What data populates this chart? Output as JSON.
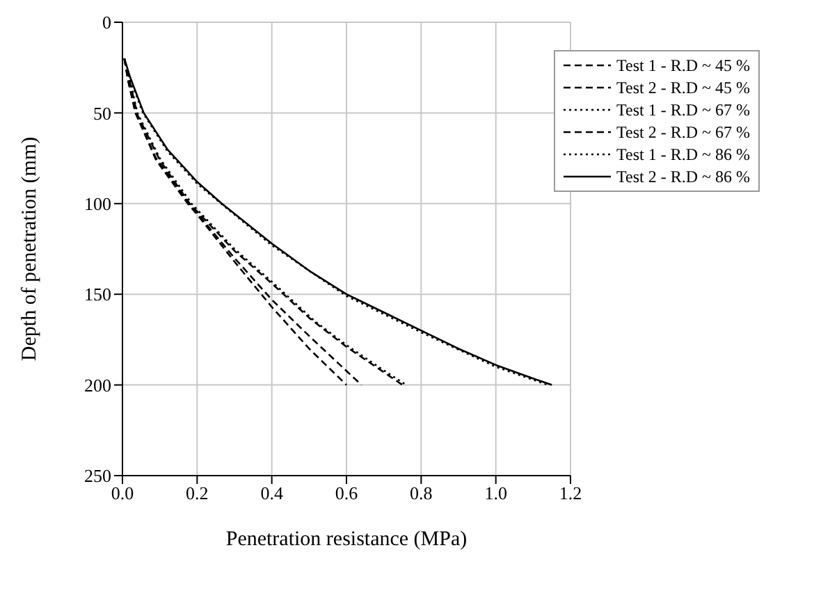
{
  "chart_data": {
    "type": "line",
    "xlabel": "Penetration  resistance (MPa)",
    "ylabel": "Depth of penetration (mm)",
    "xlim": [
      0,
      1.2
    ],
    "xticks": [
      {
        "value": 0,
        "label": "0.0"
      },
      {
        "value": 0.2,
        "label": "0.2"
      },
      {
        "value": 0.4,
        "label": "0.4"
      },
      {
        "value": 0.6,
        "label": "0.6"
      },
      {
        "value": 0.8,
        "label": "0.8"
      },
      {
        "value": 1,
        "label": "1.0"
      },
      {
        "value": 1.2,
        "label": "1.2"
      }
    ],
    "ylim": [
      250,
      0
    ],
    "yticks": [
      0,
      50,
      100,
      150,
      200,
      250
    ],
    "grid": true,
    "legend": "top right",
    "marker": "none",
    "series": [
      {
        "name": "Test 1 - R.D ~ 45 %",
        "color": "#000000",
        "line_style": "dashed",
        "x": [
          0.005,
          0.015,
          0.035,
          0.09,
          0.175,
          0.2,
          0.3,
          0.4,
          0.5,
          0.6
        ],
        "values": [
          20,
          32,
          50,
          76,
          100,
          106,
          132,
          157,
          180,
          200
        ]
      },
      {
        "name": "Test 2 - R.D ~ 45 %",
        "color": "#000000",
        "line_style": "dashed",
        "x": [
          0.005,
          0.015,
          0.035,
          0.09,
          0.175,
          0.3,
          0.4,
          0.5,
          0.64
        ],
        "values": [
          20,
          32,
          50,
          75,
          99,
          130,
          153,
          173,
          200
        ]
      },
      {
        "name": "Test 1 - R.D ~ 67 %",
        "color": "#000000",
        "line_style": "dotted",
        "x": [
          0.005,
          0.02,
          0.04,
          0.1,
          0.185,
          0.3,
          0.4,
          0.516,
          0.6,
          0.7,
          0.76
        ],
        "values": [
          20,
          32,
          50,
          75,
          100,
          125,
          143,
          165,
          178,
          192,
          200
        ]
      },
      {
        "name": "Test 2 - R.D ~ 67 %",
        "color": "#000000",
        "line_style": "dashed",
        "x": [
          0.005,
          0.02,
          0.04,
          0.1,
          0.18,
          0.3,
          0.4,
          0.5,
          0.6,
          0.75
        ],
        "values": [
          20,
          33,
          51,
          76,
          100,
          126,
          144,
          163,
          179,
          200
        ]
      },
      {
        "name": "Test 1 - R.D ~ 86 %",
        "color": "#000000",
        "line_style": "dotted",
        "x": [
          0.005,
          0.02,
          0.055,
          0.12,
          0.2,
          0.27,
          0.4,
          0.6,
          0.8,
          1.0,
          1.14
        ],
        "values": [
          20,
          31,
          50,
          71,
          89,
          101,
          123,
          151,
          171,
          190,
          200
        ]
      },
      {
        "name": "Test 2 - R.D ~ 86 %",
        "color": "#000000",
        "line_style": "solid",
        "x": [
          0.005,
          0.02,
          0.057,
          0.12,
          0.2,
          0.266,
          0.4,
          0.5,
          0.6,
          0.7,
          0.8,
          0.9,
          1.0,
          1.08,
          1.15
        ],
        "values": [
          20,
          30,
          50,
          70,
          88,
          100,
          122,
          137,
          150,
          160,
          170,
          180,
          189,
          195,
          200
        ]
      }
    ]
  }
}
